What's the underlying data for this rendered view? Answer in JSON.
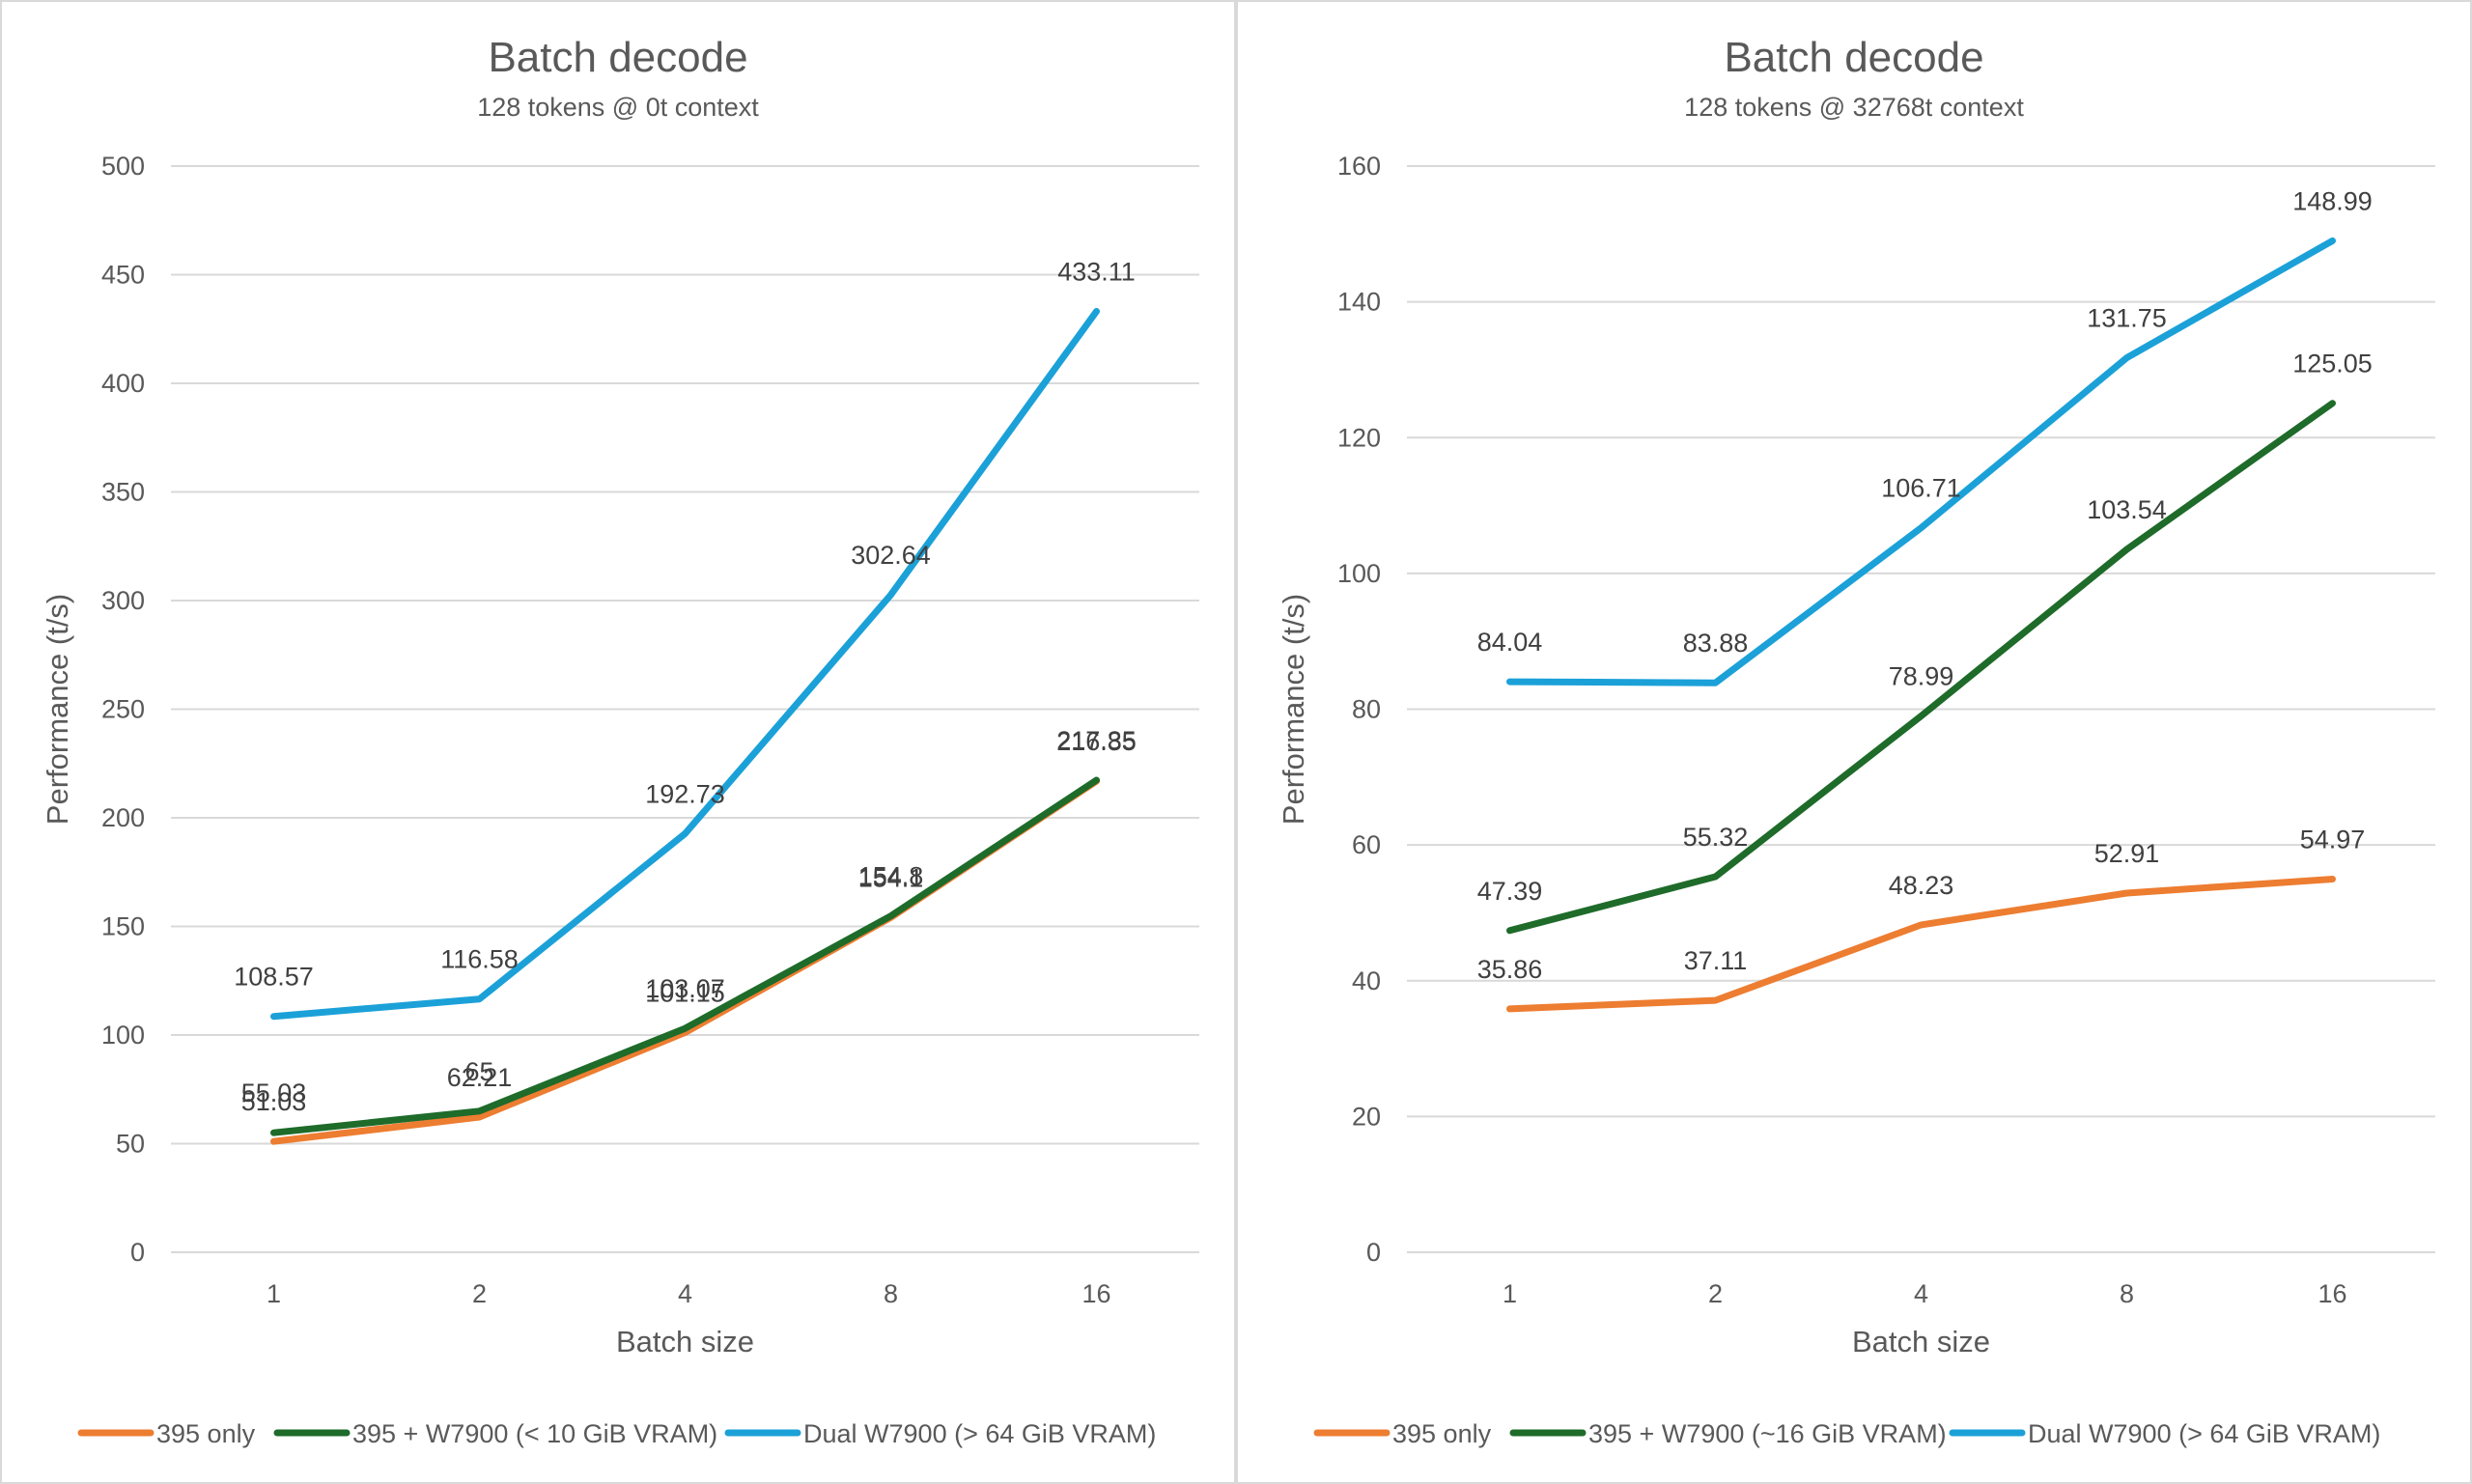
{
  "chart_data": [
    {
      "type": "line",
      "title": "Batch decode",
      "subtitle": "128 tokens @ 0t context",
      "xlabel": "Batch size",
      "ylabel": "Performance (t/s)",
      "categories": [
        "1",
        "2",
        "4",
        "8",
        "16"
      ],
      "ylim": [
        0,
        500
      ],
      "ystep": 50,
      "grid": true,
      "legend_position": "bottom",
      "series": [
        {
          "name": "395 only",
          "color": "#ed7d31",
          "values": [
            51.03,
            62.21,
            101.15,
            154.1,
            216.85
          ],
          "labels": [
            "51.03",
            "62.21",
            "101.15",
            "154.1",
            "216.85"
          ]
        },
        {
          "name": "395 + W7900 (< 10 GiB VRAM)",
          "color": "#1e6b2a",
          "values": [
            55.03,
            65,
            103.07,
            154.8,
            217.35
          ],
          "labels": [
            "55.03",
            "65",
            "103.07",
            "154.8",
            "217.35"
          ]
        },
        {
          "name": "Dual W7900 (> 64 GiB VRAM)",
          "color": "#1ba1d8",
          "values": [
            108.57,
            116.58,
            192.73,
            302.64,
            433.11
          ],
          "labels": [
            "108.57",
            "116.58",
            "192.73",
            "302.64",
            "433.11"
          ]
        }
      ]
    },
    {
      "type": "line",
      "title": "Batch decode",
      "subtitle": "128 tokens @ 32768t context",
      "xlabel": "Batch size",
      "ylabel": "Performance (t/s)",
      "categories": [
        "1",
        "2",
        "4",
        "8",
        "16"
      ],
      "ylim": [
        0,
        160
      ],
      "ystep": 20,
      "grid": true,
      "legend_position": "bottom",
      "series": [
        {
          "name": "395 only",
          "color": "#ed7d31",
          "values": [
            35.86,
            37.11,
            48.23,
            52.91,
            54.97
          ],
          "labels": [
            "35.86",
            "37.11",
            "48.23",
            "52.91",
            "54.97"
          ]
        },
        {
          "name": "395 + W7900 (~16 GiB VRAM)",
          "color": "#1e6b2a",
          "values": [
            47.39,
            55.32,
            78.99,
            103.54,
            125.05
          ],
          "labels": [
            "47.39",
            "55.32",
            "78.99",
            "103.54",
            "125.05"
          ]
        },
        {
          "name": "Dual W7900 (> 64 GiB VRAM)",
          "color": "#1ba1d8",
          "values": [
            84.04,
            83.88,
            106.71,
            131.75,
            148.99
          ],
          "labels": [
            "84.04",
            "83.88",
            "106.71",
            "131.75",
            "148.99"
          ]
        }
      ]
    }
  ]
}
